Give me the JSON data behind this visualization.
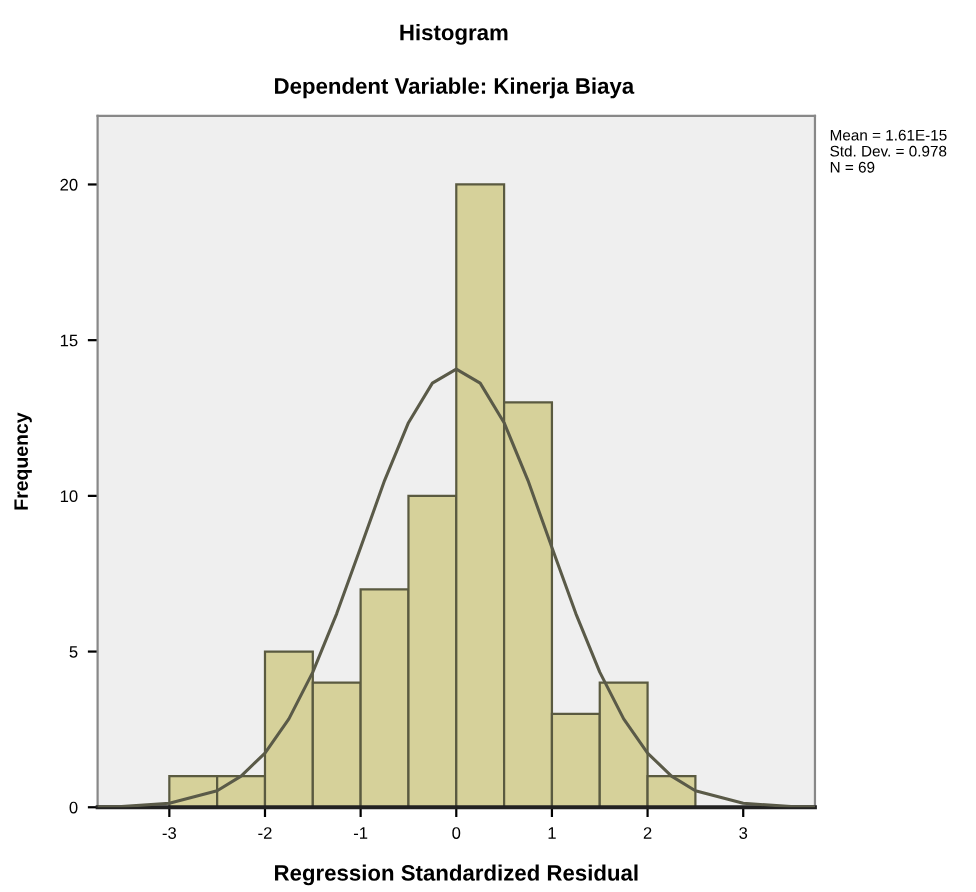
{
  "chart_data": {
    "type": "histogram",
    "title": "Histogram",
    "subtitle": "Dependent Variable: Kinerja Biaya",
    "xlabel": "Regression Standardized Residual",
    "ylabel": "Frequency",
    "bins": [
      -3,
      -2.5,
      -2,
      -1.5,
      -1,
      -0.5,
      0,
      0.5,
      1,
      1.5,
      2,
      2.5
    ],
    "values": [
      1,
      1,
      5,
      4,
      7,
      10,
      20,
      13,
      3,
      4,
      1
    ],
    "color": "#d6d19a",
    "series": [
      {
        "type": "line",
        "color": "#5a5a48",
        "x": [
          -3.75,
          -3.5,
          -3,
          -2.5,
          -2.25,
          -2,
          -1.75,
          -1.5,
          -1.25,
          -1,
          -0.75,
          -0.5,
          -0.25,
          0,
          0.25,
          0.5,
          0.75,
          1,
          1.25,
          1.5,
          1.75,
          2,
          2.25,
          2.5,
          3,
          3.5,
          3.75
        ],
        "values": [
          0.01,
          0.02,
          0.13,
          0.53,
          1.0,
          1.74,
          2.84,
          4.34,
          6.22,
          8.34,
          10.49,
          12.35,
          13.62,
          14.07,
          13.62,
          12.35,
          10.49,
          8.34,
          6.22,
          4.34,
          2.84,
          1.74,
          1.0,
          0.53,
          0.13,
          0.02,
          0.01
        ]
      }
    ],
    "xlim": [
      -3.75,
      3.75
    ],
    "ylim": [
      0,
      22.2
    ],
    "xticks": [
      -3,
      -2,
      -1,
      0,
      1,
      2,
      3
    ],
    "yticks": [
      0,
      5,
      10,
      15,
      20
    ],
    "annotations": [
      "Mean = 1.61E-15",
      "Std. Dev. = 0.978",
      "N = 69"
    ]
  }
}
